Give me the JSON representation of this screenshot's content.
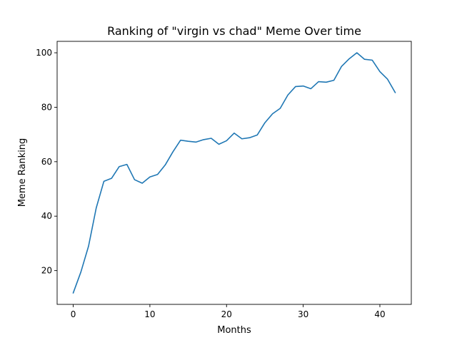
{
  "chart_data": {
    "type": "line",
    "title": "Ranking of \"virgin vs chad\" Meme Over time",
    "xlabel": "Months",
    "ylabel": "Meme Ranking",
    "xlim": [
      -2.1,
      44.1
    ],
    "ylim": [
      7.6,
      104.2
    ],
    "xticks": [
      0,
      10,
      20,
      30,
      40
    ],
    "yticks": [
      20,
      40,
      60,
      80,
      100
    ],
    "grid": false,
    "legend": "none",
    "series": [
      {
        "color": "#1f77b4",
        "x": [
          0,
          1,
          2,
          3,
          4,
          5,
          6,
          7,
          8,
          9,
          10,
          11,
          12,
          13,
          14,
          15,
          16,
          17,
          18,
          19,
          20,
          21,
          22,
          23,
          24,
          25,
          26,
          27,
          28,
          29,
          30,
          31,
          32,
          33,
          34,
          35,
          36,
          37,
          38,
          39,
          40,
          41,
          42
        ],
        "y": [
          11.8,
          19.5,
          29.0,
          43.0,
          52.8,
          53.9,
          58.2,
          59.0,
          53.4,
          52.1,
          54.4,
          55.3,
          58.8,
          63.6,
          67.9,
          67.5,
          67.2,
          68.1,
          68.6,
          66.4,
          67.7,
          70.5,
          68.4,
          68.8,
          69.8,
          74.3,
          77.6,
          79.6,
          84.5,
          87.6,
          87.8,
          86.8,
          89.4,
          89.2,
          89.9,
          95.0,
          97.8,
          100.0,
          97.6,
          97.3,
          93.1,
          90.3,
          85.4
        ]
      }
    ]
  }
}
